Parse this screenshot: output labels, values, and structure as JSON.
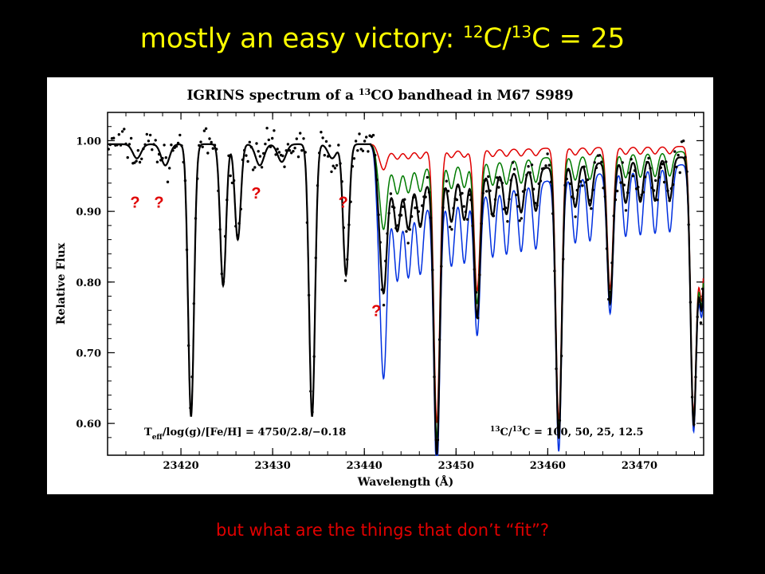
{
  "slide": {
    "title_prefix": "mostly an easy victory:  ",
    "title_sup1": "12",
    "title_c1": "C/",
    "title_sup2": "13",
    "title_c2": "C = 25",
    "caption": "but what are the things that don’t “fit”?",
    "question_marks": [
      "?",
      "?",
      "?",
      "?",
      "?"
    ]
  },
  "chart_data": {
    "type": "line",
    "title_parts": [
      "IGRINS spectrum of a ",
      "13",
      "CO bandhead in M67 S989"
    ],
    "xlabel": "Wavelength (Å)",
    "ylabel": "Relative Flux",
    "xlim": [
      23412,
      23477
    ],
    "ylim": [
      0.555,
      1.04
    ],
    "xticks": [
      23420,
      23430,
      23440,
      23450,
      23460,
      23470
    ],
    "yticks": [
      0.6,
      0.7,
      0.8,
      0.9,
      1.0
    ],
    "ytick_labels": [
      "0.60",
      "0.70",
      "0.80",
      "0.90",
      "1.00"
    ],
    "annotation_left": "T_eff/log(g)/[Fe/H] = 4750/2.8/−0.18",
    "annotation_left_parts": [
      "T",
      "eff",
      "/log(g)/[Fe/H] = 4750/2.8/−0.18"
    ],
    "annotation_right_parts": [
      "13",
      "C/",
      "13",
      "C = 100, 50, 25, 12.5"
    ],
    "question_mark_positions": [
      {
        "x": 23415.0,
        "y": 0.905
      },
      {
        "x": 23417.6,
        "y": 0.905
      },
      {
        "x": 23428.2,
        "y": 0.918
      },
      {
        "x": 23437.7,
        "y": 0.905
      },
      {
        "x": 23441.3,
        "y": 0.752
      }
    ],
    "continuum": 0.995,
    "strong_lines": [
      {
        "x": 23421.1,
        "depth": 0.385
      },
      {
        "x": 23424.6,
        "depth": 0.2
      },
      {
        "x": 23426.2,
        "depth": 0.135
      },
      {
        "x": 23434.3,
        "depth": 0.385
      },
      {
        "x": 23438.0,
        "depth": 0.185
      },
      {
        "x": 23447.9,
        "depth": 0.385
      },
      {
        "x": 23452.3,
        "depth": 0.2
      },
      {
        "x": 23461.2,
        "depth": 0.385
      },
      {
        "x": 23466.8,
        "depth": 0.2
      },
      {
        "x": 23475.9,
        "depth": 0.375
      },
      {
        "x": 23476.8,
        "depth": 0.21
      }
    ],
    "weak_lines": [
      {
        "x": 23415.2,
        "depth": 0.02
      },
      {
        "x": 23418.3,
        "depth": 0.03
      },
      {
        "x": 23428.6,
        "depth": 0.03
      },
      {
        "x": 23431.0,
        "depth": 0.025
      },
      {
        "x": 23436.5,
        "depth": 0.02
      }
    ],
    "bandhead": {
      "x": 23441.3,
      "base_depth": 0.1,
      "decay_width": 25
    },
    "iso_lines": [
      23442.2,
      23443.6,
      23444.8,
      23446.1,
      23449.5,
      23450.9,
      23454.0,
      23455.5,
      23457.1,
      23458.7,
      23463.0,
      23464.6,
      23468.5,
      23470.1,
      23471.7,
      23473.3
    ],
    "series": [
      {
        "ratio": "100",
        "color": "#e00000",
        "iso_scale": 0.12
      },
      {
        "ratio": "50",
        "color": "#007a00",
        "iso_scale": 0.4
      },
      {
        "ratio": "25",
        "color": "#000000",
        "iso_scale": 0.7
      },
      {
        "ratio": "12.5",
        "color": "#0030e0",
        "iso_scale": 1.1
      }
    ],
    "observed_scatter": 0.012,
    "observed_step": 0.19
  }
}
